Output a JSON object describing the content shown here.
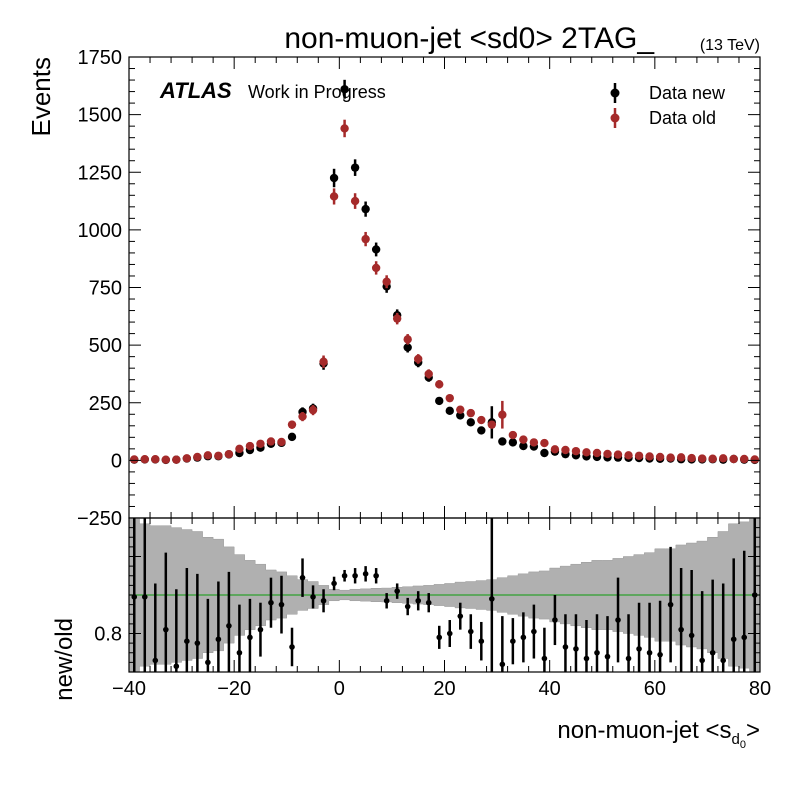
{
  "chart_data": [
    {
      "type": "scatter",
      "panel": "main",
      "title": "non-muon-jet <sd0> 2TAG_",
      "energy_label": "(13 TeV)",
      "experiment_label": "ATLAS",
      "status_label": "Work in Progress",
      "ylabel": "Events",
      "xlim": [
        -40,
        80
      ],
      "ylim": [
        -250,
        1750
      ],
      "xticks": [
        "−40",
        "−20",
        "0",
        "20",
        "40",
        "60",
        "80"
      ],
      "yticks": [
        "−250",
        "0",
        "250",
        "500",
        "750",
        "1000",
        "1250",
        "1500",
        "1750"
      ],
      "legend_position": "top-right",
      "series": [
        {
          "name": "Data new",
          "color": "#000000",
          "x": [
            -39,
            -37,
            -35,
            -33,
            -31,
            -29,
            -27,
            -25,
            -23,
            -21,
            -19,
            -17,
            -15,
            -13,
            -11,
            -9,
            -7,
            -5,
            -3,
            -1,
            1,
            3,
            5,
            7,
            9,
            11,
            13,
            15,
            17,
            19,
            21,
            23,
            25,
            27,
            29,
            31,
            33,
            35,
            37,
            39,
            41,
            43,
            45,
            47,
            49,
            51,
            53,
            55,
            57,
            59,
            61,
            63,
            65,
            67,
            69,
            71,
            73,
            75,
            77,
            79
          ],
          "y": [
            3,
            4,
            4,
            2,
            3,
            8,
            12,
            18,
            18,
            26,
            32,
            45,
            55,
            72,
            76,
            102,
            210,
            225,
            420,
            1225,
            1610,
            1270,
            1090,
            915,
            755,
            630,
            490,
            425,
            360,
            258,
            215,
            195,
            165,
            130,
            165,
            82,
            78,
            62,
            60,
            32,
            38,
            27,
            22,
            17,
            15,
            13,
            12,
            11,
            10,
            8,
            7,
            8,
            5,
            4,
            4,
            5,
            3,
            6,
            3,
            2
          ],
          "yerr": [
            4,
            5,
            5,
            5,
            5,
            6,
            7,
            8,
            8,
            9,
            10,
            11,
            13,
            14,
            14,
            16,
            20,
            21,
            27,
            40,
            41,
            36,
            33,
            30,
            28,
            25,
            22,
            21,
            19,
            16,
            15,
            14,
            13,
            12,
            70,
            10,
            9,
            8,
            8,
            7,
            7,
            6,
            6,
            5,
            5,
            5,
            5,
            4,
            4,
            4,
            4,
            4,
            3,
            3,
            3,
            3,
            3,
            3,
            3,
            3
          ]
        },
        {
          "name": "Data old",
          "color": "#a52a2a",
          "x": [
            -39,
            -37,
            -35,
            -33,
            -31,
            -29,
            -27,
            -25,
            -23,
            -21,
            -19,
            -17,
            -15,
            -13,
            -11,
            -9,
            -7,
            -5,
            -3,
            -1,
            1,
            3,
            5,
            7,
            9,
            11,
            13,
            15,
            17,
            19,
            21,
            23,
            25,
            27,
            29,
            31,
            33,
            35,
            37,
            39,
            41,
            43,
            45,
            47,
            49,
            51,
            53,
            55,
            57,
            59,
            61,
            63,
            65,
            67,
            69,
            71,
            73,
            75,
            77,
            79
          ],
          "y": [
            4,
            5,
            5,
            3,
            3,
            9,
            15,
            22,
            20,
            27,
            50,
            62,
            72,
            82,
            80,
            155,
            190,
            218,
            428,
            1145,
            1440,
            1125,
            960,
            835,
            775,
            615,
            525,
            440,
            375,
            330,
            270,
            220,
            205,
            175,
            155,
            198,
            110,
            90,
            78,
            75,
            48,
            45,
            40,
            35,
            32,
            28,
            25,
            22,
            20,
            17,
            15,
            12,
            13,
            10,
            8,
            7,
            9,
            6,
            6,
            4
          ],
          "yerr": [
            4,
            5,
            5,
            5,
            5,
            6,
            7,
            8,
            8,
            9,
            11,
            12,
            13,
            14,
            14,
            18,
            20,
            22,
            27,
            35,
            38,
            34,
            31,
            29,
            28,
            25,
            23,
            21,
            20,
            18,
            16,
            15,
            14,
            13,
            12,
            60,
            11,
            10,
            9,
            9,
            7,
            7,
            7,
            6,
            6,
            6,
            5,
            5,
            5,
            5,
            4,
            4,
            4,
            4,
            3,
            3,
            3,
            3,
            3,
            3
          ]
        }
      ]
    },
    {
      "type": "scatter",
      "panel": "ratio",
      "xlabel": "non-muon-jet <s_{d_0}>",
      "xlabel_main": "non-muon-jet <s",
      "xlabel_sub": "d",
      "xlabel_subsub": "0",
      "xlabel_close": ">",
      "ylabel": "new/old",
      "xlim": [
        -40,
        80
      ],
      "ylim": [
        0.6,
        1.4
      ],
      "yticks": [
        "0.8"
      ],
      "reference_line": {
        "y": 1.0,
        "color": "#2ca02c"
      },
      "uncertainty_band": {
        "color": "#b0b0b0",
        "x_edges": [
          -40,
          -38,
          -36,
          -34,
          -32,
          -30,
          -28,
          -26,
          -24,
          -22,
          -20,
          -18,
          -16,
          -14,
          -12,
          -10,
          -8,
          -6,
          -4,
          -2,
          0,
          2,
          4,
          6,
          8,
          10,
          12,
          14,
          16,
          18,
          20,
          22,
          24,
          26,
          28,
          30,
          32,
          34,
          36,
          38,
          40,
          42,
          44,
          46,
          48,
          50,
          52,
          54,
          56,
          58,
          60,
          62,
          64,
          66,
          68,
          70,
          72,
          74,
          76,
          78,
          80
        ],
        "halfwidth": [
          0.4,
          0.37,
          0.36,
          0.36,
          0.35,
          0.34,
          0.33,
          0.3,
          0.29,
          0.25,
          0.21,
          0.18,
          0.16,
          0.13,
          0.12,
          0.1,
          0.08,
          0.07,
          0.05,
          0.03,
          0.025,
          0.03,
          0.032,
          0.035,
          0.036,
          0.04,
          0.043,
          0.047,
          0.05,
          0.055,
          0.06,
          0.067,
          0.07,
          0.075,
          0.08,
          0.09,
          0.1,
          0.11,
          0.12,
          0.125,
          0.14,
          0.15,
          0.16,
          0.17,
          0.18,
          0.18,
          0.19,
          0.2,
          0.21,
          0.22,
          0.24,
          0.24,
          0.26,
          0.27,
          0.28,
          0.3,
          0.33,
          0.37,
          0.38,
          0.4
        ]
      },
      "series": [
        {
          "name": "Data new / Data old",
          "color": "#000000",
          "x": [
            -39,
            -37,
            -35,
            -33,
            -31,
            -29,
            -27,
            -25,
            -23,
            -21,
            -19,
            -17,
            -15,
            -13,
            -11,
            -9,
            -7,
            -5,
            -3,
            -1,
            1,
            3,
            5,
            7,
            9,
            11,
            13,
            15,
            17,
            19,
            21,
            23,
            25,
            27,
            29,
            31,
            33,
            35,
            37,
            39,
            41,
            43,
            45,
            47,
            49,
            51,
            53,
            55,
            57,
            59,
            61,
            63,
            65,
            67,
            69,
            71,
            73,
            75,
            77,
            79
          ],
          "y": [
            0.99,
            0.99,
            0.66,
            0.82,
            0.63,
            0.76,
            0.75,
            0.65,
            0.77,
            0.84,
            0.7,
            0.78,
            0.82,
            0.96,
            0.95,
            0.73,
            1.09,
            0.99,
            0.97,
            1.06,
            1.1,
            1.1,
            1.11,
            1.1,
            0.97,
            1.02,
            0.94,
            0.97,
            0.96,
            0.78,
            0.8,
            0.89,
            0.81,
            0.76,
            0.98,
            0.64,
            0.76,
            0.78,
            0.81,
            0.67,
            0.87,
            0.73,
            0.72,
            0.67,
            0.7,
            0.68,
            0.87,
            0.67,
            0.72,
            0.7,
            0.69,
            0.95,
            0.82,
            0.79,
            0.66,
            0.7,
            0.66,
            0.77,
            0.78,
            1.0
          ],
          "yerr": [
            0.5,
            0.45,
            0.4,
            0.4,
            0.4,
            0.38,
            0.36,
            0.33,
            0.3,
            0.28,
            0.25,
            0.2,
            0.14,
            0.13,
            0.15,
            0.1,
            0.1,
            0.06,
            0.06,
            0.035,
            0.03,
            0.04,
            0.04,
            0.04,
            0.04,
            0.04,
            0.045,
            0.05,
            0.05,
            0.06,
            0.07,
            0.07,
            0.09,
            0.1,
            0.42,
            0.25,
            0.12,
            0.13,
            0.14,
            0.16,
            0.13,
            0.17,
            0.18,
            0.2,
            0.2,
            0.21,
            0.22,
            0.23,
            0.24,
            0.26,
            0.28,
            0.3,
            0.32,
            0.34,
            0.36,
            0.38,
            0.4,
            0.42,
            0.45,
            0.5
          ]
        }
      ]
    }
  ]
}
